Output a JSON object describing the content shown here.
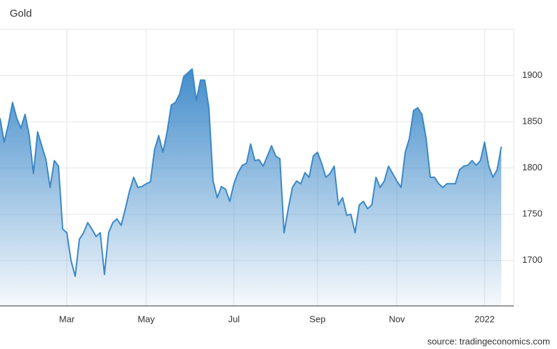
{
  "chart_data": {
    "type": "area",
    "title": "Gold",
    "source": "source: tradingeconomics.com",
    "categories": [
      null,
      null,
      null,
      null,
      null,
      null,
      null,
      null,
      null,
      null,
      null,
      null,
      null,
      null,
      null,
      null,
      "Mar",
      null,
      null,
      null,
      null,
      null,
      null,
      null,
      null,
      null,
      null,
      null,
      null,
      null,
      null,
      null,
      null,
      null,
      null,
      "May",
      null,
      null,
      null,
      null,
      null,
      null,
      null,
      null,
      null,
      null,
      null,
      null,
      null,
      null,
      null,
      null,
      null,
      null,
      null,
      null,
      "Jul",
      null,
      null,
      null,
      null,
      null,
      null,
      null,
      null,
      null,
      null,
      null,
      null,
      null,
      null,
      null,
      null,
      null,
      null,
      null,
      "Sep",
      null,
      null,
      null,
      null,
      null,
      null,
      null,
      null,
      null,
      null,
      null,
      null,
      null,
      null,
      null,
      null,
      null,
      null,
      "Nov",
      null,
      null,
      null,
      null,
      null,
      null,
      null,
      null,
      null,
      null,
      null,
      null,
      null,
      null,
      null,
      null,
      null,
      null,
      null,
      null,
      "2022",
      null,
      null,
      null,
      null
    ],
    "values": [
      1854,
      1828,
      1847,
      1871,
      1854,
      1843,
      1858,
      1835,
      1794,
      1839,
      1824,
      1809,
      1779,
      1808,
      1802,
      1734,
      1730,
      1700,
      1683,
      1723,
      1730,
      1741,
      1734,
      1726,
      1730,
      1685,
      1730,
      1741,
      1745,
      1738,
      1756,
      1775,
      1790,
      1779,
      1780,
      1783,
      1785,
      1820,
      1835,
      1817,
      1839,
      1868,
      1871,
      1880,
      1899,
      1903,
      1907,
      1873,
      1895,
      1895,
      1865,
      1786,
      1768,
      1780,
      1777,
      1764,
      1783,
      1795,
      1803,
      1805,
      1826,
      1808,
      1809,
      1802,
      1813,
      1824,
      1813,
      1810,
      1730,
      1756,
      1779,
      1786,
      1783,
      1795,
      1790,
      1813,
      1817,
      1805,
      1790,
      1794,
      1802,
      1760,
      1768,
      1749,
      1750,
      1730,
      1760,
      1764,
      1756,
      1760,
      1790,
      1779,
      1786,
      1802,
      1794,
      1786,
      1779,
      1817,
      1832,
      1862,
      1865,
      1858,
      1832,
      1790,
      1790,
      1783,
      1779,
      1783,
      1783,
      1783,
      1798,
      1802,
      1803,
      1808,
      1803,
      1808,
      1828,
      1802,
      1790,
      1798,
      1823
    ],
    "color": "#3a87c8",
    "ylim": [
      1651,
      1950
    ],
    "yticks": [
      1700,
      1750,
      1800,
      1850,
      1900
    ],
    "grid": true
  }
}
